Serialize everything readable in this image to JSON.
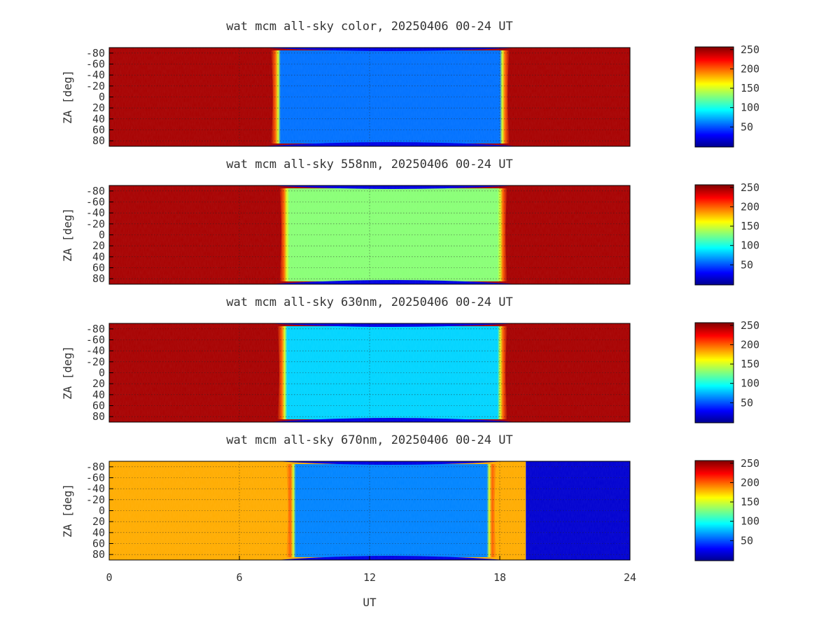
{
  "chart_data": {
    "type": "heatmap",
    "xlabel": "UT",
    "ylabel": "ZA [deg]",
    "x_ticks": [
      "0",
      "6",
      "12",
      "18",
      "24"
    ],
    "y_ticks": [
      "-80",
      "-60",
      "-40",
      "-20",
      "0",
      "20",
      "40",
      "60",
      "80"
    ],
    "xlim": [
      0,
      24
    ],
    "ylim": [
      -90,
      90
    ],
    "colorbar": {
      "ticks": [
        "50",
        "100",
        "150",
        "200",
        "250"
      ],
      "range": [
        0,
        255
      ],
      "colormap": "jet"
    },
    "grid": true,
    "panels": [
      {
        "title": "wat mcm all-sky color, 20250406 00-24 UT",
        "dark_start": 7.9,
        "dark_end": 18.0,
        "outside_level": 245,
        "inside_level": 60,
        "frame_end": 24,
        "after_level": null
      },
      {
        "title": "wat mcm all-sky 558nm, 20250406 00-24 UT",
        "dark_start": 8.3,
        "dark_end": 17.9,
        "outside_level": 245,
        "inside_level": 130,
        "frame_end": 24,
        "after_level": null
      },
      {
        "title": "wat mcm all-sky 630nm, 20250406 00-24 UT",
        "dark_start": 8.2,
        "dark_end": 17.9,
        "outside_level": 245,
        "inside_level": 85,
        "frame_end": 24,
        "after_level": null
      },
      {
        "title": "wat mcm all-sky 670nm, 20250406 00-24 UT",
        "dark_start": 8.6,
        "dark_end": 17.4,
        "outside_level": 180,
        "inside_level": 65,
        "frame_end": 19.2,
        "after_level": 20
      }
    ]
  }
}
